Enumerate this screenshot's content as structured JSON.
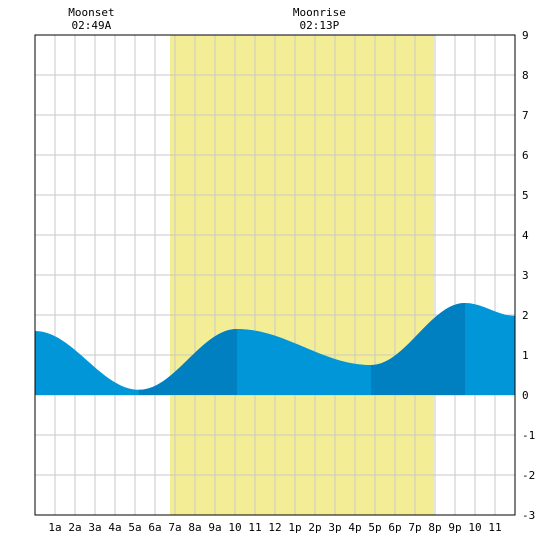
{
  "chart_data": {
    "type": "area",
    "moon_events": [
      {
        "label": "Moonset",
        "time": "02:49A",
        "hour": 2.82
      },
      {
        "label": "Moonrise",
        "time": "02:13P",
        "hour": 14.22
      }
    ],
    "daylight": {
      "start_hour": 6.75,
      "end_hour": 19.95
    },
    "x_ticks": [
      {
        "hour": 1,
        "label": "1a"
      },
      {
        "hour": 2,
        "label": "2a"
      },
      {
        "hour": 3,
        "label": "3a"
      },
      {
        "hour": 4,
        "label": "4a"
      },
      {
        "hour": 5,
        "label": "5a"
      },
      {
        "hour": 6,
        "label": "6a"
      },
      {
        "hour": 7,
        "label": "7a"
      },
      {
        "hour": 8,
        "label": "8a"
      },
      {
        "hour": 9,
        "label": "9a"
      },
      {
        "hour": 10,
        "label": "10"
      },
      {
        "hour": 11,
        "label": "11"
      },
      {
        "hour": 12,
        "label": "12"
      },
      {
        "hour": 13,
        "label": "1p"
      },
      {
        "hour": 14,
        "label": "2p"
      },
      {
        "hour": 15,
        "label": "3p"
      },
      {
        "hour": 16,
        "label": "4p"
      },
      {
        "hour": 17,
        "label": "5p"
      },
      {
        "hour": 18,
        "label": "6p"
      },
      {
        "hour": 19,
        "label": "7p"
      },
      {
        "hour": 20,
        "label": "8p"
      },
      {
        "hour": 21,
        "label": "9p"
      },
      {
        "hour": 22,
        "label": "10"
      },
      {
        "hour": 23,
        "label": "11"
      }
    ],
    "y_ticks": [
      -3,
      -2,
      -1,
      0,
      1,
      2,
      3,
      4,
      5,
      6,
      7,
      8,
      9
    ],
    "xlim": [
      0,
      24
    ],
    "ylim": [
      -3,
      9
    ],
    "extrema": [
      {
        "hour": 0,
        "value": 1.6
      },
      {
        "hour": 5.2,
        "value": 0.13
      },
      {
        "hour": 10.1,
        "value": 1.65
      },
      {
        "hour": 16.8,
        "value": 0.75
      },
      {
        "hour": 21.5,
        "value": 2.3
      },
      {
        "hour": 24,
        "value": 1.98
      }
    ],
    "rising_bands": [
      {
        "start_hour": 5.2,
        "end_hour": 10.1
      },
      {
        "start_hour": 16.8,
        "end_hour": 21.5
      }
    ],
    "colors": {
      "daylight": "#f3ee95",
      "tide": "#0096d8",
      "tide_rising": "#0080c0",
      "grid": "#c8c8c8",
      "axis": "#000000"
    }
  }
}
